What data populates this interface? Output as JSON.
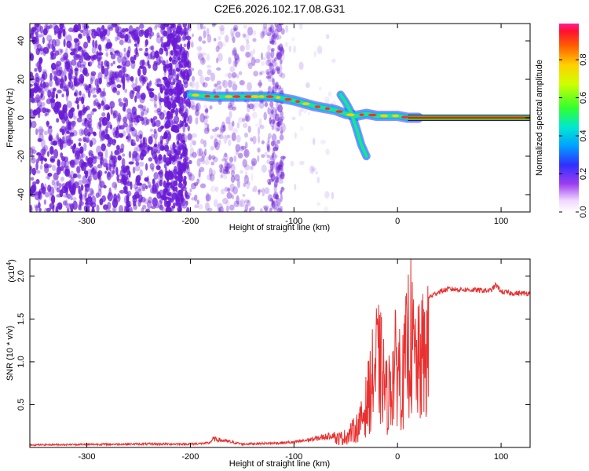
{
  "title": "C2E6.2026.102.17.08.G31",
  "colors": {
    "snr_line": "#e8302f",
    "ridge_core": "#ff1a1a",
    "ridge_edge": "#00c8ff",
    "noise": "#6a1bd6",
    "band": "#2ed52e"
  },
  "chart_data": [
    {
      "type": "heatmap",
      "xlabel": "Height of straight line (km)",
      "ylabel": "Frequency (Hz)",
      "xlim": [
        -355,
        128
      ],
      "ylim": [
        -49,
        49
      ],
      "xticks": [
        -300,
        -200,
        -100,
        0,
        100
      ],
      "yticks": [
        -40,
        -20,
        0,
        20,
        40
      ],
      "grid": false,
      "colorbar": {
        "label": "Normalized spectral amplitude",
        "range": [
          0.0,
          0.99
        ],
        "ticks": [
          0.0,
          0.2,
          0.4,
          0.6,
          0.8
        ],
        "tick_labels": [
          "0.0",
          "0.2",
          "0.4",
          "0.6",
          "0.8"
        ],
        "colormap": "rainbow (white-violet-blue-cyan-green-yellow-red-pink)"
      },
      "ridge": {
        "x": [
          -200,
          -180,
          -160,
          -140,
          -120,
          -100,
          -80,
          -60,
          -50,
          -40,
          -30,
          -20,
          -10,
          0,
          10,
          128
        ],
        "y": [
          12,
          11,
          11,
          11,
          11,
          9,
          6,
          4,
          2,
          1,
          2,
          1,
          1,
          1,
          0,
          0
        ]
      },
      "branch": {
        "x": [
          -55,
          -50,
          -45,
          -40,
          -35,
          -30
        ],
        "y": [
          12,
          8,
          3,
          -5,
          -14,
          -20
        ]
      }
    },
    {
      "type": "line",
      "xlabel": "Height of straight line (km)",
      "ylabel": "SNR (10 * v/v)",
      "y_multiplier": "(x10^4)",
      "xlim": [
        -355,
        128
      ],
      "ylim": [
        0,
        2.2
      ],
      "xticks": [
        -300,
        -200,
        -100,
        0,
        100
      ],
      "yticks": [
        0.5,
        1.0,
        1.5,
        2.0
      ],
      "ytick_labels": [
        "0.5",
        "1.0",
        "1.5",
        "2.0"
      ],
      "grid": false,
      "envelope": {
        "x": [
          -355,
          -250,
          -200,
          -182,
          -178,
          -150,
          -120,
          -100,
          -80,
          -60,
          -50,
          -40,
          -35,
          -30,
          -25,
          -20,
          -15,
          -10,
          -5,
          0,
          5,
          10,
          12,
          15,
          20,
          25,
          30,
          40,
          50,
          70,
          90,
          95,
          100,
          110,
          128
        ],
        "y": [
          0.03,
          0.04,
          0.04,
          0.05,
          0.1,
          0.04,
          0.05,
          0.06,
          0.1,
          0.15,
          0.2,
          0.35,
          0.5,
          0.8,
          1.2,
          1.6,
          1.4,
          0.9,
          1.3,
          1.6,
          1.2,
          1.9,
          2.2,
          1.7,
          1.5,
          1.7,
          1.75,
          1.82,
          1.85,
          1.84,
          1.83,
          1.9,
          1.82,
          1.8,
          1.8
        ]
      }
    }
  ]
}
